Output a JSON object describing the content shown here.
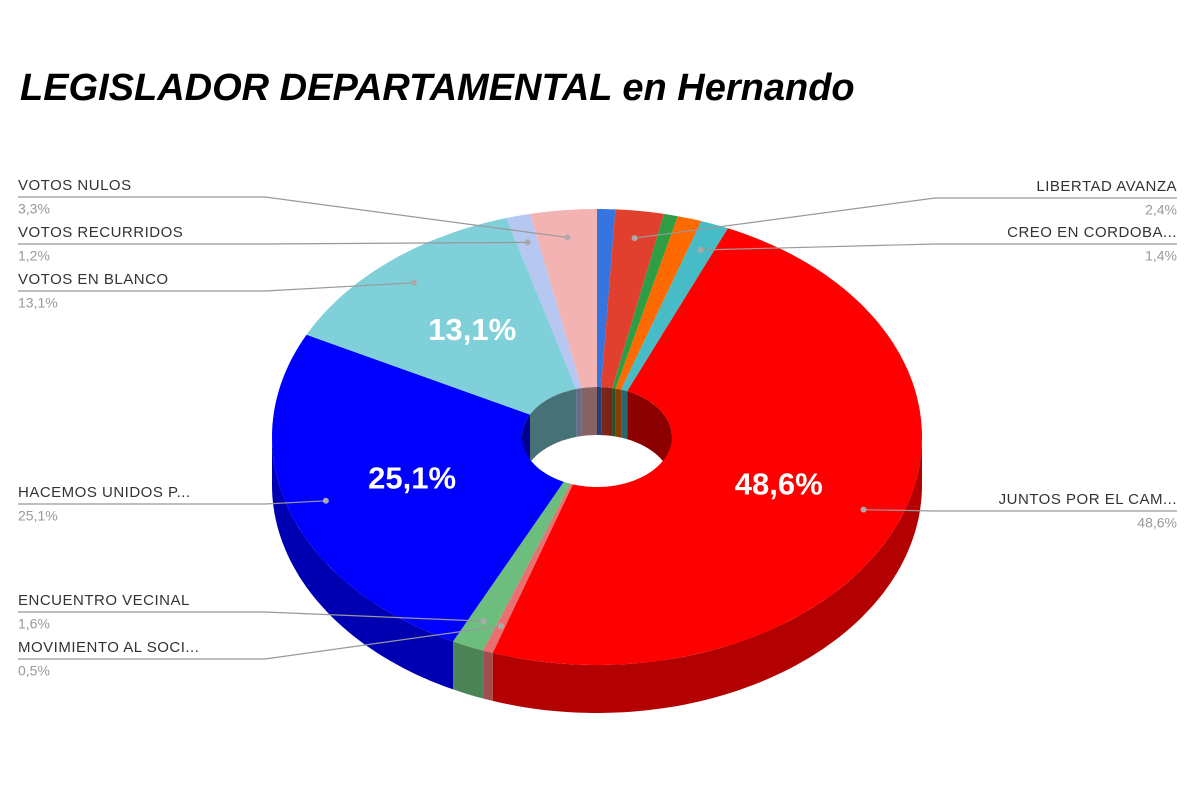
{
  "chart_data": {
    "type": "donut3d",
    "title": "LEGISLADOR DEPARTAMENTAL en Hernando",
    "categories": [
      null,
      "LIBERTAD AVANZA",
      null,
      null,
      "CREO EN CORDOBA...",
      "JUNTOS POR EL CAM...",
      "MOVIMIENTO AL SOCI...",
      "ENCUENTRO VECINAL",
      "HACEMOS UNIDOS P...",
      "VOTOS EN BLANCO",
      "VOTOS RECURRIDOS",
      "VOTOS NULOS"
    ],
    "values": [
      0.9,
      2.4,
      0.7,
      1.2,
      1.4,
      48.6,
      0.5,
      1.6,
      25.1,
      13.1,
      1.2,
      3.3
    ],
    "value_labels": [
      null,
      "2,4%",
      null,
      null,
      "1,4%",
      "48,6%",
      "0,5%",
      "1,6%",
      "25,1%",
      "13,1%",
      "1,2%",
      "3,3%"
    ],
    "colors": [
      "#3674e0",
      "#e2402f",
      "#2e9e45",
      "#ff6a00",
      "#47bcc7",
      "#ff0000",
      "#e87070",
      "#6cbd7e",
      "#0000ff",
      "#7fd0d8",
      "#b6c8f2",
      "#f4b3b3"
    ]
  }
}
